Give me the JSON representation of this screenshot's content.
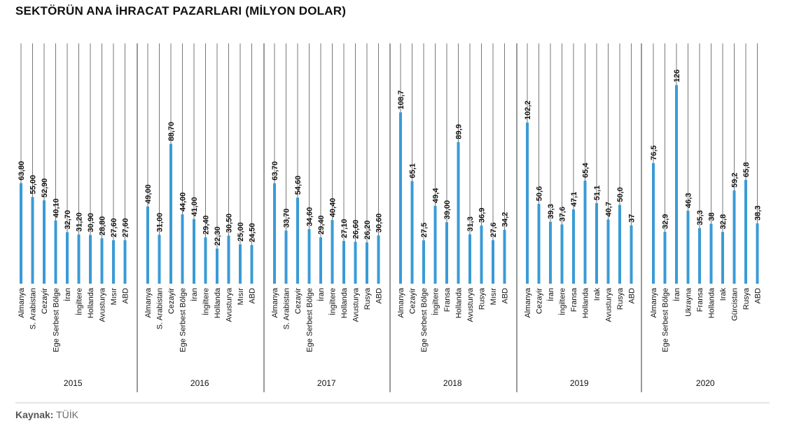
{
  "title": "SEKTÖRÜN ANA İHRACAT PAZARLARI (MİLYON DOLAR)",
  "source_label": "Kaynak:",
  "source_value": "TÜİK",
  "colors": {
    "bar": "#3a9bd5",
    "grid": "#555555",
    "text": "#111111",
    "divider": "#333333"
  },
  "chart_data": [
    {
      "type": "bar",
      "group": "2015",
      "categories": [
        "Almanya",
        "S. Arabistan",
        "Cezayir",
        "Ege Serbest Bölge",
        "İran",
        "İngiltere",
        "Hollanda",
        "Avusturya",
        "Mısır",
        "ABD"
      ],
      "values": [
        63.8,
        55.0,
        52.9,
        40.1,
        32.7,
        31.2,
        30.9,
        28.8,
        27.6,
        27.6
      ],
      "labels": [
        "63,80",
        "55,00",
        "52,90",
        "40,10",
        "32,70",
        "31,20",
        "30,90",
        "28,80",
        "27,60",
        "27,60"
      ],
      "ylim": [
        0,
        130
      ]
    },
    {
      "type": "bar",
      "group": "2016",
      "categories": [
        "Almanya",
        "S. Arabistan",
        "Cezayir",
        "Ege Serbest Bölge",
        "İran",
        "İngiltere",
        "Hollanda",
        "Avusturya",
        "Mısır",
        "ABD"
      ],
      "values": [
        49.0,
        31.0,
        88.7,
        44.0,
        41.0,
        29.4,
        22.3,
        30.5,
        25.0,
        24.5
      ],
      "labels": [
        "49,00",
        "31,00",
        "88,70",
        "44,00",
        "41,00",
        "29,40",
        "22,30",
        "30,50",
        "25,00",
        "24,50"
      ],
      "ylim": [
        0,
        130
      ]
    },
    {
      "type": "bar",
      "group": "2017",
      "categories": [
        "Almanya",
        "S. Arabistan",
        "Cezayir",
        "Ege Serbest Bölge",
        "İran",
        "İngiltere",
        "Hollanda",
        "Avusturya",
        "Rusya",
        "ABD"
      ],
      "values": [
        63.7,
        33.7,
        54.6,
        34.6,
        29.4,
        40.4,
        27.1,
        26.6,
        26.2,
        30.6
      ],
      "labels": [
        "63,70",
        "33,70",
        "54,60",
        "34,60",
        "29,40",
        "40,40",
        "27,10",
        "26,60",
        "26,20",
        "30,60"
      ],
      "ylim": [
        0,
        130
      ]
    },
    {
      "type": "bar",
      "group": "2018",
      "categories": [
        "Almanya",
        "Cezayir",
        "Ege Serbest Bölge",
        "İngiltere",
        "Fransa",
        "Hollanda",
        "Avusturya",
        "Rusya",
        "Mısır",
        "ABD"
      ],
      "values": [
        108.7,
        65.1,
        27.5,
        49.4,
        39.0,
        89.9,
        31.3,
        36.9,
        27.6,
        34.2
      ],
      "labels": [
        "108,7",
        "65,1",
        "27,5",
        "49,4",
        "39,00",
        "89,9",
        "31,3",
        "36,9",
        "27,6",
        "34,2"
      ],
      "ylim": [
        0,
        130
      ]
    },
    {
      "type": "bar",
      "group": "2019",
      "categories": [
        "Almanya",
        "Cezayir",
        "İran",
        "İngiltere",
        "Fransa",
        "Hollanda",
        "Irak",
        "Avusturya",
        "Rusya",
        "ABD"
      ],
      "values": [
        102.2,
        50.6,
        39.3,
        37.6,
        47.1,
        65.4,
        51.1,
        40.7,
        50.0,
        37
      ],
      "labels": [
        "102,2",
        "50,6",
        "39,3",
        "37,6",
        "47,1",
        "65,4",
        "51,1",
        "40,7",
        "50,0",
        "37"
      ],
      "ylim": [
        0,
        130
      ]
    },
    {
      "type": "bar",
      "group": "2020",
      "categories": [
        "Almanya",
        "Ege Serbest Bölge",
        "İran",
        "Ukrayna",
        "Fransa",
        "Hollanda",
        "Irak",
        "Gürcistan",
        "Rusya",
        "ABD"
      ],
      "values": [
        76.5,
        32.9,
        126,
        46.3,
        35.3,
        38,
        32.8,
        59.2,
        65.8,
        38.3
      ],
      "labels": [
        "76,5",
        "32,9",
        "126",
        "46,3",
        "35,3",
        "38",
        "32,8",
        "59,2",
        "65,8",
        "38,3"
      ],
      "ylim": [
        0,
        130
      ]
    }
  ]
}
